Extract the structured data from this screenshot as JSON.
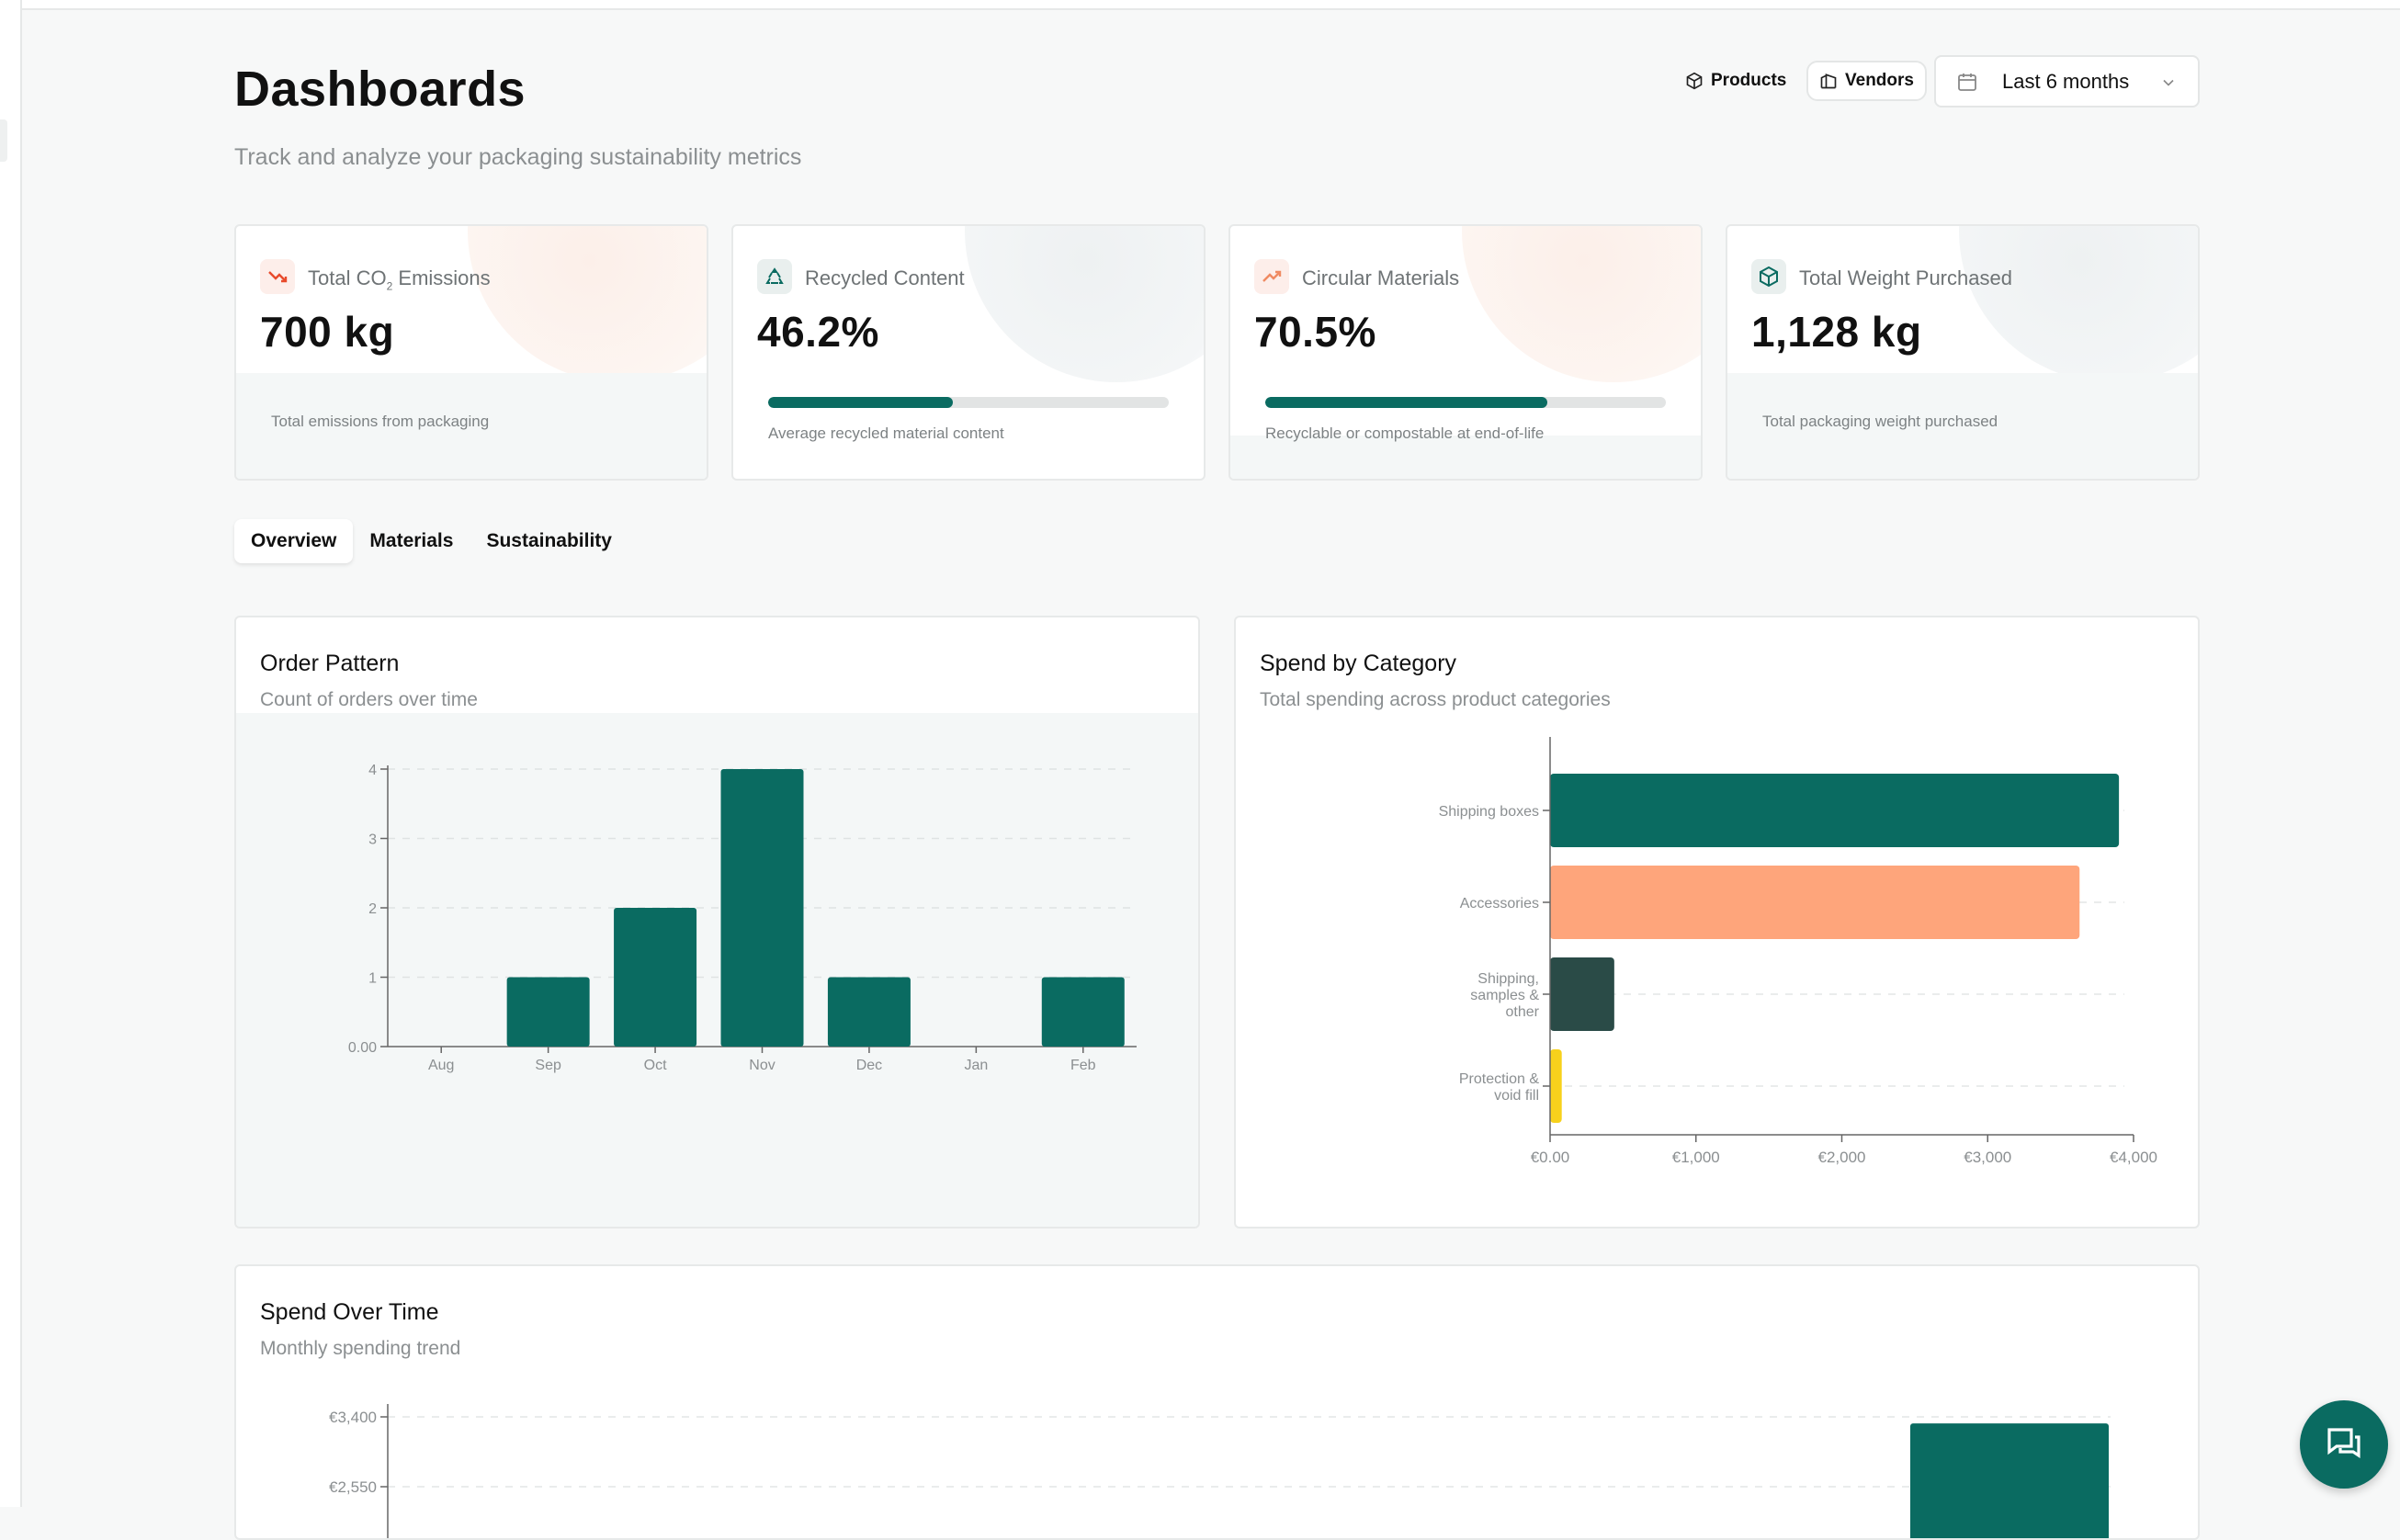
{
  "header": {
    "title": "Dashboards",
    "subtitle": "Track and analyze your packaging sustainability metrics",
    "products_label": "Products",
    "vendors_label": "Vendors",
    "date_range": "Last 6 months"
  },
  "metrics": [
    {
      "label": "Total CO",
      "sub": "2",
      "label_rest": " Emissions",
      "value": "700 kg",
      "note": "Total emissions from packaging",
      "icon": "trend-down-icon"
    },
    {
      "label": "Recycled Content",
      "value": "46.2%",
      "note": "Average recycled material content",
      "progress": 0.462,
      "icon": "recycle-icon"
    },
    {
      "label": "Circular Materials",
      "value": "70.5%",
      "note": "Recyclable or compostable at end-of-life",
      "progress": 0.705,
      "icon": "trend-up-icon"
    },
    {
      "label": "Total Weight Purchased",
      "value": "1,128 kg",
      "note": "Total packaging weight purchased",
      "icon": "package-icon"
    }
  ],
  "tabs": [
    "Overview",
    "Materials",
    "Sustainability"
  ],
  "panels": {
    "order_pattern": {
      "title": "Order Pattern",
      "subtitle": "Count of orders over time"
    },
    "spend_category": {
      "title": "Spend by Category",
      "subtitle": "Total spending across product categories"
    },
    "spend_time": {
      "title": "Spend Over Time",
      "subtitle": "Monthly spending trend"
    }
  },
  "colors": {
    "accent": "#0a6b61",
    "peach": "#fea57b",
    "dark": "#2a4b47",
    "yellow": "#f7d11c"
  },
  "chart_data": [
    {
      "type": "bar",
      "title": "Order Pattern",
      "categories": [
        "Aug",
        "Sep",
        "Oct",
        "Nov",
        "Dec",
        "Jan",
        "Feb"
      ],
      "values": [
        0,
        1,
        2,
        4,
        1,
        0,
        1
      ],
      "yticks": [
        "0.00",
        "1",
        "2",
        "3",
        "4"
      ],
      "ylim": [
        0,
        4
      ],
      "grid": true
    },
    {
      "type": "bar",
      "orientation": "horizontal",
      "title": "Spend by Category",
      "categories": [
        [
          "Shipping boxes"
        ],
        [
          "Accessories"
        ],
        [
          "Shipping,",
          "samples &",
          "other"
        ],
        [
          "Protection &",
          "void fill"
        ]
      ],
      "values": [
        3900,
        3630,
        440,
        80
      ],
      "colors": [
        "#0a6b61",
        "#fea57b",
        "#2a4b47",
        "#f7d11c"
      ],
      "xticks": [
        "€0.00",
        "€1,000",
        "€2,000",
        "€3,000",
        "€4,000"
      ],
      "xlim": [
        0,
        4000
      ],
      "grid": true
    },
    {
      "type": "bar",
      "title": "Spend Over Time",
      "yticks_visible": [
        "€3,400",
        "€2,550"
      ],
      "ylim": [
        0,
        3400
      ],
      "values": [
        3320
      ],
      "grid": true
    }
  ]
}
